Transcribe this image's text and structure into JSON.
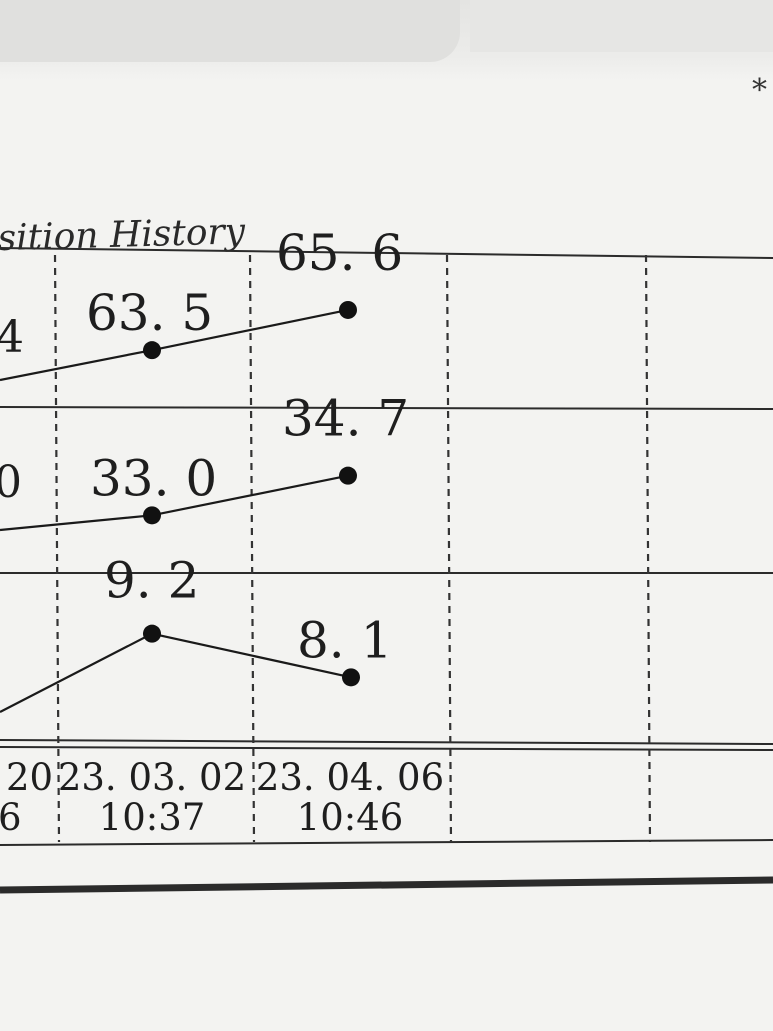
{
  "header": {
    "title": "sition History",
    "corner_mark": "*"
  },
  "chart_data": {
    "type": "line",
    "title": "sition History",
    "x_labels": [
      {
        "date": "20",
        "time": "6"
      },
      {
        "date": "23. 03. 02",
        "time": "10:37"
      },
      {
        "date": "23. 04. 06",
        "time": "10:46"
      },
      {
        "date": "",
        "time": ""
      },
      {
        "date": "",
        "time": ""
      }
    ],
    "series": [
      {
        "clipped_prev_label": "4",
        "values": [
          63.5,
          65.6
        ],
        "labels": [
          "63. 5",
          "65. 6"
        ]
      },
      {
        "clipped_prev_label": "0",
        "values": [
          33.0,
          34.7
        ],
        "labels": [
          "33. 0",
          "34. 7"
        ]
      },
      {
        "clipped_prev_label": "",
        "values": [
          9.2,
          8.1
        ],
        "labels": [
          "9. 2",
          "8. 1"
        ]
      }
    ],
    "grid": true,
    "legend": "none",
    "line_color": "#1a1a1a",
    "marker_color": "#111111",
    "rule_color": "#2b2b2b"
  }
}
